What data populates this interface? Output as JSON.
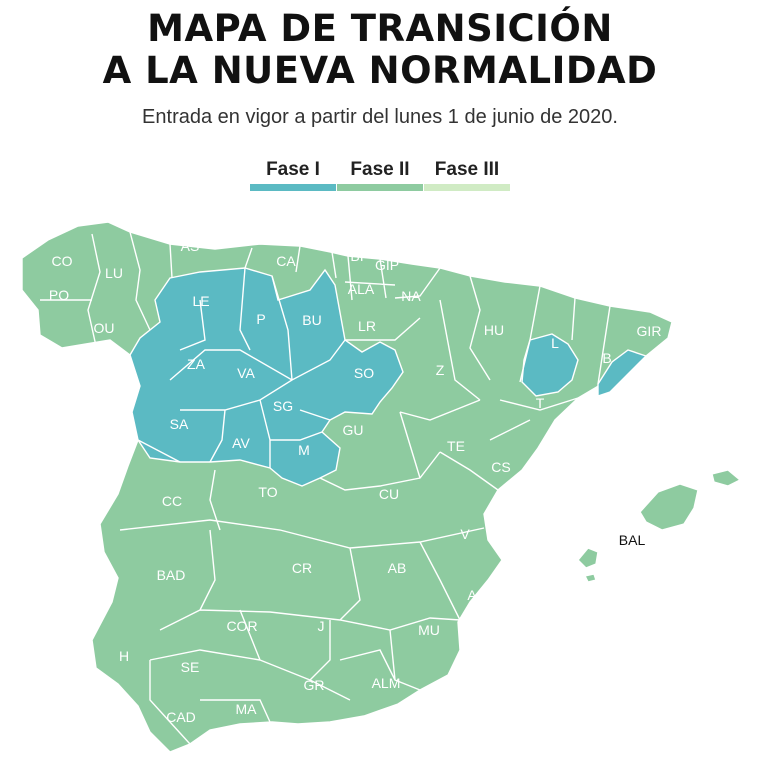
{
  "title_line1": "MAPA DE TRANSICIÓN",
  "title_line2": "A LA NUEVA NORMALIDAD",
  "subtitle": "Entrada en vigor a partir del lunes 1 de junio de 2020.",
  "legend": [
    {
      "label": "Fase I",
      "color": "#5bbac3"
    },
    {
      "label": "Fase II",
      "color": "#8ecba0"
    },
    {
      "label": "Fase III",
      "color": "#d0ebc4"
    }
  ],
  "colors": {
    "fase1": "#5bbac3",
    "fase2": "#8ecba0",
    "border": "#ffffff"
  },
  "provinces": [
    {
      "code": "CO",
      "phase": "Fase II"
    },
    {
      "code": "LU",
      "phase": "Fase II"
    },
    {
      "code": "AS",
      "phase": "Fase II"
    },
    {
      "code": "CA",
      "phase": "Fase II"
    },
    {
      "code": "BI",
      "phase": "Fase II"
    },
    {
      "code": "GIP",
      "phase": "Fase II"
    },
    {
      "code": "ALA",
      "phase": "Fase II"
    },
    {
      "code": "NA",
      "phase": "Fase II"
    },
    {
      "code": "PO",
      "phase": "Fase II"
    },
    {
      "code": "OU",
      "phase": "Fase II"
    },
    {
      "code": "LE",
      "phase": "Fase I"
    },
    {
      "code": "P",
      "phase": "Fase I"
    },
    {
      "code": "BU",
      "phase": "Fase I"
    },
    {
      "code": "LR",
      "phase": "Fase II"
    },
    {
      "code": "HU",
      "phase": "Fase II"
    },
    {
      "code": "L",
      "phase": "Fase I"
    },
    {
      "code": "GIR",
      "phase": "Fase II"
    },
    {
      "code": "B",
      "phase": "Fase I"
    },
    {
      "code": "ZA",
      "phase": "Fase I"
    },
    {
      "code": "VA",
      "phase": "Fase I"
    },
    {
      "code": "SO",
      "phase": "Fase I"
    },
    {
      "code": "Z",
      "phase": "Fase II"
    },
    {
      "code": "T",
      "phase": "Fase II"
    },
    {
      "code": "SA",
      "phase": "Fase I"
    },
    {
      "code": "SG",
      "phase": "Fase I"
    },
    {
      "code": "AV",
      "phase": "Fase I"
    },
    {
      "code": "M",
      "phase": "Fase I"
    },
    {
      "code": "GU",
      "phase": "Fase II"
    },
    {
      "code": "TE",
      "phase": "Fase II"
    },
    {
      "code": "CS",
      "phase": "Fase II"
    },
    {
      "code": "CC",
      "phase": "Fase II"
    },
    {
      "code": "TO",
      "phase": "Fase II"
    },
    {
      "code": "CU",
      "phase": "Fase II"
    },
    {
      "code": "V",
      "phase": "Fase II"
    },
    {
      "code": "BAD",
      "phase": "Fase II"
    },
    {
      "code": "CR",
      "phase": "Fase II"
    },
    {
      "code": "AB",
      "phase": "Fase II"
    },
    {
      "code": "A",
      "phase": "Fase II"
    },
    {
      "code": "COR",
      "phase": "Fase II"
    },
    {
      "code": "J",
      "phase": "Fase II"
    },
    {
      "code": "MU",
      "phase": "Fase II"
    },
    {
      "code": "H",
      "phase": "Fase II"
    },
    {
      "code": "SE",
      "phase": "Fase II"
    },
    {
      "code": "GR",
      "phase": "Fase II"
    },
    {
      "code": "ALM",
      "phase": "Fase II"
    },
    {
      "code": "CAD",
      "phase": "Fase II"
    },
    {
      "code": "MA",
      "phase": "Fase II"
    },
    {
      "code": "BAL",
      "phase": "Fase II"
    }
  ]
}
